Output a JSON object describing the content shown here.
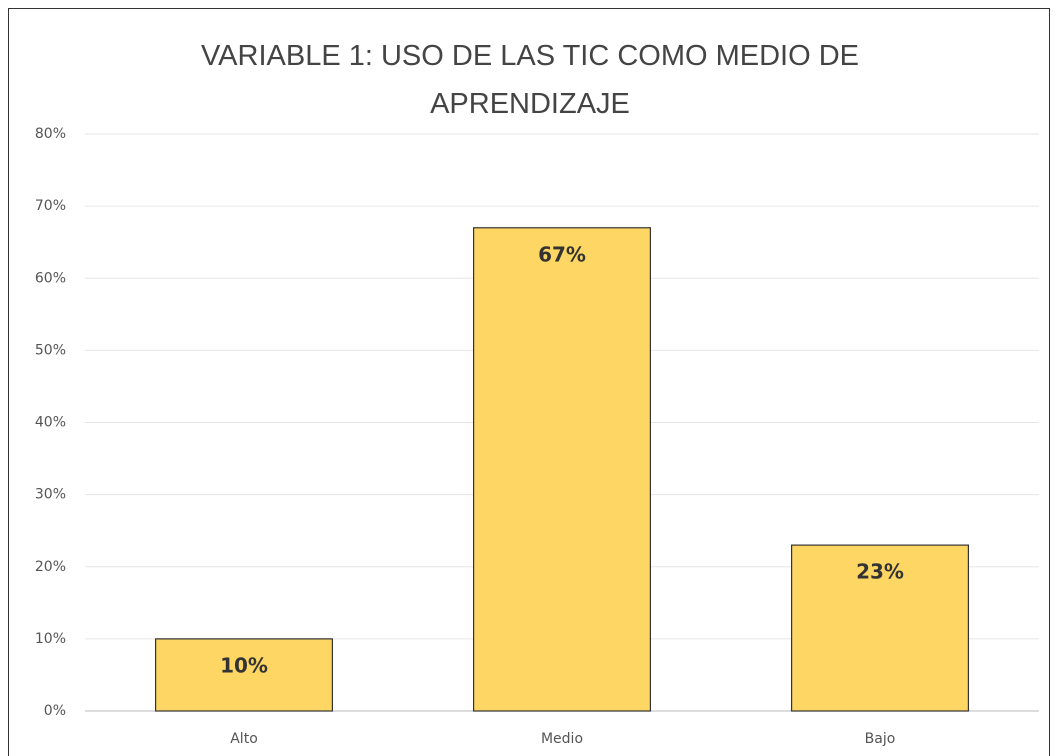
{
  "chart_data": {
    "type": "bar",
    "title": "VARIABLE 1: USO DE LAS TIC COMO MEDIO DE APRENDIZAJE",
    "categories": [
      "Alto",
      "Medio",
      "Bajo"
    ],
    "values": [
      10,
      67,
      23
    ],
    "value_labels": [
      "10%",
      "67%",
      "23%"
    ],
    "color": "#fdd663",
    "ylim": [
      0,
      80
    ],
    "yticks": [
      {
        "value": 0,
        "label": "0%"
      },
      {
        "value": 10,
        "label": "10%"
      },
      {
        "value": 20,
        "label": "20%"
      },
      {
        "value": 30,
        "label": "30%"
      },
      {
        "value": 40,
        "label": "40%"
      },
      {
        "value": 50,
        "label": "50%"
      },
      {
        "value": 60,
        "label": "60%"
      },
      {
        "value": 70,
        "label": "70%"
      },
      {
        "value": 80,
        "label": "80%"
      }
    ],
    "grid": true
  }
}
